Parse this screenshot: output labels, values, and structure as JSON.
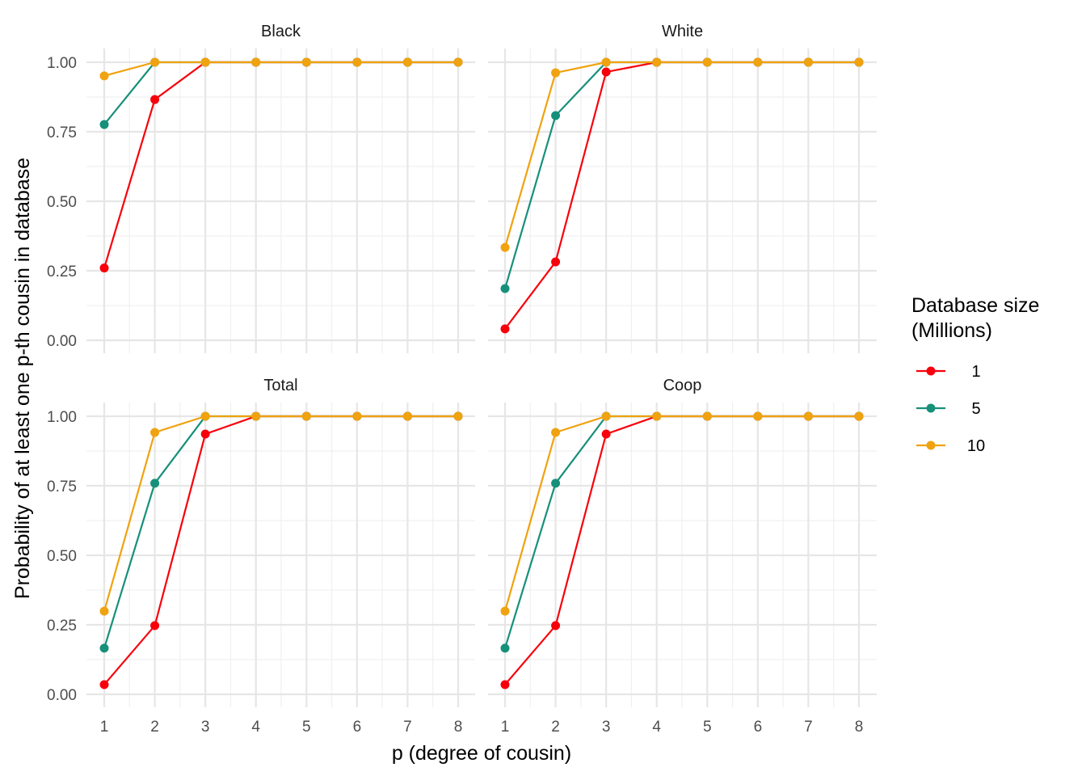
{
  "chart_data": {
    "type": "line",
    "xlabel": "p (degree of cousin)",
    "ylabel": "Probability of at least one p-th cousin in database",
    "x": [
      1,
      2,
      3,
      4,
      5,
      6,
      7,
      8
    ],
    "xlim": [
      1,
      8
    ],
    "ylim": [
      0,
      1
    ],
    "yticks": [
      "0.00",
      "0.25",
      "0.50",
      "0.75",
      "1.00"
    ],
    "xticks": [
      "1",
      "2",
      "3",
      "4",
      "5",
      "6",
      "7",
      "8"
    ],
    "grid": true,
    "legend": {
      "title_line1": "Database size",
      "title_line2": "(Millions)",
      "placement": "right",
      "entries": [
        "1",
        "5",
        "10"
      ]
    },
    "colors": {
      "1": "#F8000B",
      "5": "#17907A",
      "10": "#F0A20F"
    },
    "panels": [
      {
        "title": "Black",
        "series": [
          {
            "name": "1",
            "values": [
              0.26,
              0.866,
              1,
              1,
              1,
              1,
              1,
              1
            ]
          },
          {
            "name": "5",
            "values": [
              0.776,
              1,
              1,
              1,
              1,
              1,
              1,
              1
            ]
          },
          {
            "name": "10",
            "values": [
              0.951,
              1,
              1,
              1,
              1,
              1,
              1,
              1
            ]
          }
        ]
      },
      {
        "title": "White",
        "series": [
          {
            "name": "1",
            "values": [
              0.041,
              0.282,
              0.965,
              1,
              1,
              1,
              1,
              1
            ]
          },
          {
            "name": "5",
            "values": [
              0.186,
              0.808,
              1,
              1,
              1,
              1,
              1,
              1
            ]
          },
          {
            "name": "10",
            "values": [
              0.334,
              0.962,
              1,
              1,
              1,
              1,
              1,
              1
            ]
          }
        ]
      },
      {
        "title": "Total",
        "series": [
          {
            "name": "1",
            "values": [
              0.035,
              0.247,
              0.936,
              1,
              1,
              1,
              1,
              1
            ]
          },
          {
            "name": "5",
            "values": [
              0.166,
              0.759,
              1,
              1,
              1,
              1,
              1,
              1
            ]
          },
          {
            "name": "10",
            "values": [
              0.299,
              0.942,
              1,
              1,
              1,
              1,
              1,
              1
            ]
          }
        ]
      },
      {
        "title": "Coop",
        "series": [
          {
            "name": "1",
            "values": [
              0.035,
              0.247,
              0.936,
              1,
              1,
              1,
              1,
              1
            ]
          },
          {
            "name": "5",
            "values": [
              0.166,
              0.759,
              1,
              1,
              1,
              1,
              1,
              1
            ]
          },
          {
            "name": "10",
            "values": [
              0.299,
              0.942,
              1,
              1,
              1,
              1,
              1,
              1
            ]
          }
        ]
      }
    ]
  }
}
